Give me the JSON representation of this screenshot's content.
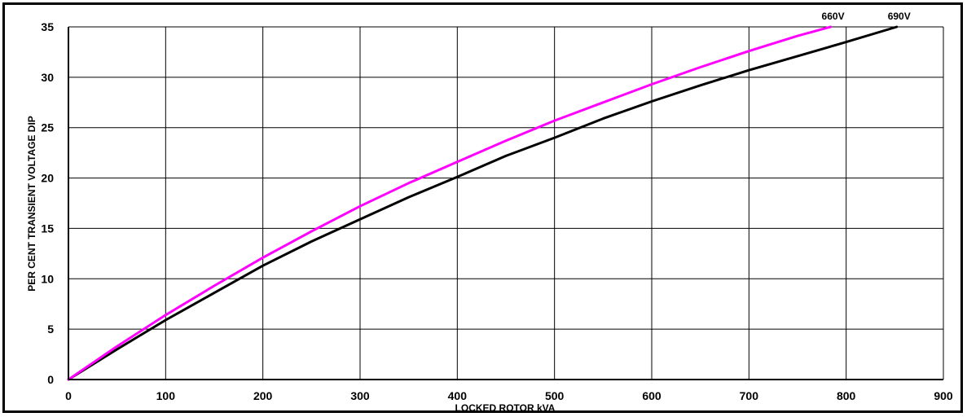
{
  "chart_data": {
    "type": "line",
    "xlabel": "LOCKED ROTOR kVA",
    "ylabel": "PER CENT TRANSIENT VOLTAGE DIP",
    "xlim": [
      0,
      900
    ],
    "ylim": [
      0,
      35
    ],
    "x_ticks": [
      "0",
      "100",
      "200",
      "300",
      "400",
      "500",
      "600",
      "700",
      "800",
      "900"
    ],
    "y_ticks": [
      "0",
      "5",
      "10",
      "15",
      "20",
      "25",
      "30",
      "35"
    ],
    "grid": true,
    "series": [
      {
        "name": "660V",
        "color": "#ff00ff",
        "x": [
          0,
          50,
          100,
          150,
          200,
          250,
          300,
          350,
          400,
          450,
          500,
          550,
          600,
          650,
          700,
          750,
          784
        ],
        "y": [
          0,
          3.3,
          6.4,
          9.3,
          12.1,
          14.7,
          17.2,
          19.5,
          21.6,
          23.7,
          25.7,
          27.5,
          29.3,
          31.0,
          32.6,
          34.1,
          35.0
        ]
      },
      {
        "name": "690V",
        "color": "#000000",
        "x": [
          0,
          50,
          100,
          150,
          200,
          250,
          300,
          350,
          400,
          450,
          500,
          550,
          600,
          650,
          700,
          750,
          800,
          852
        ],
        "y": [
          0,
          3.0,
          5.9,
          8.6,
          11.3,
          13.7,
          15.9,
          18.1,
          20.1,
          22.2,
          24.0,
          25.9,
          27.6,
          29.2,
          30.7,
          32.1,
          33.5,
          35.0
        ]
      }
    ]
  }
}
